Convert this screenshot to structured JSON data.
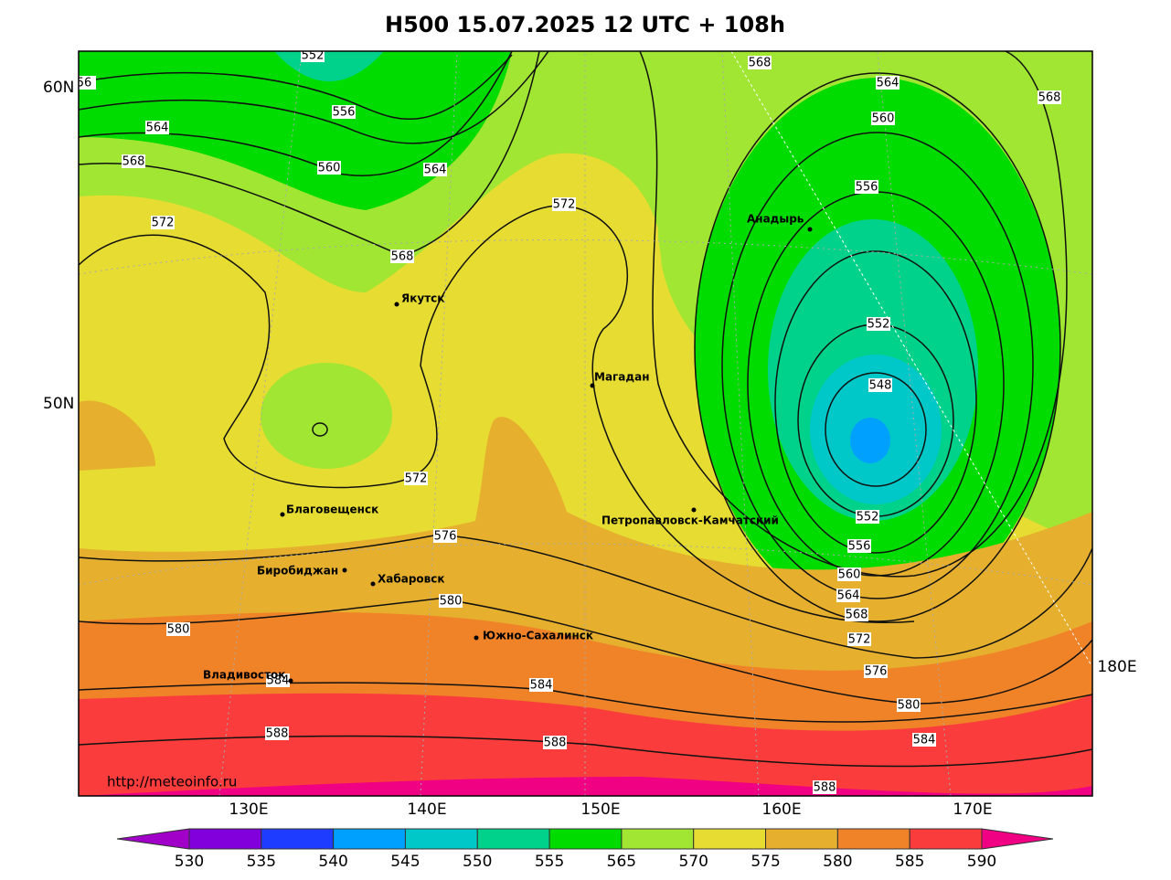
{
  "title": "H500  15.07.2025 12 UTC + 108h",
  "lat_labels": [
    "60N",
    "50N"
  ],
  "lon_labels": [
    "130E",
    "140E",
    "150E",
    "160E",
    "170E",
    "180E"
  ],
  "cities": [
    "Якутск",
    "Магадан",
    "Анадырь",
    "Благовещенск",
    "Биробиджан",
    "Хабаровск",
    "Петропавловск-Камчатский",
    "Южно-Сахалинск",
    "Владивосток"
  ],
  "contour_labels": [
    552,
    56,
    556,
    564,
    560,
    564,
    568,
    572,
    568,
    572,
    572,
    576,
    580,
    580,
    584,
    584,
    588,
    588,
    588,
    568,
    564,
    568,
    560,
    556,
    552,
    548,
    552,
    556,
    560,
    564,
    568,
    572,
    576,
    580,
    584
  ],
  "source": "http://meteoinfo.ru",
  "colorbar": {
    "ticks": [
      530,
      535,
      540,
      545,
      550,
      555,
      565,
      570,
      575,
      580,
      585,
      590
    ],
    "colors": [
      "#a000c8",
      "#8200dc",
      "#1e3cff",
      "#00a0ff",
      "#00c8c8",
      "#00d28c",
      "#00dc00",
      "#a0e632",
      "#e6dc32",
      "#e6af2d",
      "#f08228",
      "#fa3c3c",
      "#f00082"
    ]
  }
}
